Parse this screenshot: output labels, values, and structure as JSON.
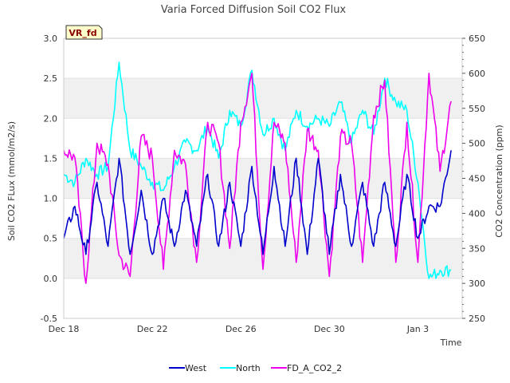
{
  "chart_data": {
    "type": "line",
    "title": "Varia Forced Diffusion Soil CO2 Flux",
    "badge": "VR_fd",
    "xlabel": "Time",
    "ylabel_left": "Soil CO2 FLux (mmol/m2/s)",
    "ylabel_right": "CO2 Concentration (ppm)",
    "xlim": [
      "2023-12-18",
      "2024-01-05"
    ],
    "ylim_left": [
      -0.5,
      3.0
    ],
    "ylim_right": [
      250,
      650
    ],
    "x_ticks": [
      "Dec 18",
      "Dec 22",
      "Dec 26",
      "Dec 30",
      "Jan 3"
    ],
    "y_ticks_left": [
      "-0.5",
      "0.0",
      "0.5",
      "1.0",
      "1.5",
      "2.0",
      "2.5",
      "3.0"
    ],
    "y_ticks_right": [
      "250",
      "300",
      "350",
      "400",
      "450",
      "500",
      "550",
      "600",
      "650"
    ],
    "shaded_bands_left": [
      [
        0.0,
        0.5
      ],
      [
        1.0,
        1.5
      ],
      [
        2.0,
        2.5
      ]
    ],
    "legend_position": "bottom-center",
    "series": [
      {
        "name": "West",
        "axis": "left",
        "color": "#0000cc",
        "x": [
          "2023-12-18",
          "2023-12-18 12:00",
          "2023-12-19",
          "2023-12-19 12:00",
          "2023-12-20",
          "2023-12-20 12:00",
          "2023-12-21",
          "2023-12-21 12:00",
          "2023-12-22",
          "2023-12-22 12:00",
          "2023-12-23",
          "2023-12-23 12:00",
          "2023-12-24",
          "2023-12-24 12:00",
          "2023-12-25",
          "2023-12-25 12:00",
          "2023-12-26",
          "2023-12-26 12:00",
          "2023-12-27",
          "2023-12-27 12:00",
          "2023-12-28",
          "2023-12-28 12:00",
          "2023-12-29",
          "2023-12-29 12:00",
          "2023-12-30",
          "2023-12-30 12:00",
          "2023-12-31",
          "2023-12-31 12:00",
          "2024-01-01",
          "2024-01-01 12:00",
          "2024-01-02",
          "2024-01-02 12:00",
          "2024-01-03",
          "2024-01-03 12:00",
          "2024-01-04",
          "2024-01-04 12:00"
        ],
        "y": [
          0.5,
          0.9,
          0.3,
          1.2,
          0.4,
          1.5,
          0.3,
          1.1,
          0.3,
          1.0,
          0.4,
          1.1,
          0.4,
          1.3,
          0.4,
          1.2,
          0.4,
          1.4,
          0.3,
          1.4,
          0.4,
          1.5,
          0.3,
          1.5,
          0.3,
          1.3,
          0.4,
          1.2,
          0.4,
          1.2,
          0.4,
          1.3,
          0.5,
          0.9,
          0.9,
          1.6
        ]
      },
      {
        "name": "North",
        "axis": "left",
        "color": "#00ffff",
        "x": [
          "2023-12-18",
          "2023-12-18 12:00",
          "2023-12-19",
          "2023-12-19 12:00",
          "2023-12-20",
          "2023-12-20 12:00",
          "2023-12-21",
          "2023-12-21 12:00",
          "2023-12-22",
          "2023-12-22 12:00",
          "2023-12-23",
          "2023-12-23 12:00",
          "2023-12-24",
          "2023-12-24 12:00",
          "2023-12-25",
          "2023-12-25 12:00",
          "2023-12-26",
          "2023-12-26 12:00",
          "2023-12-27",
          "2023-12-27 12:00",
          "2023-12-28",
          "2023-12-28 12:00",
          "2023-12-29",
          "2023-12-29 12:00",
          "2023-12-30",
          "2023-12-30 12:00",
          "2023-12-31",
          "2023-12-31 12:00",
          "2024-01-01",
          "2024-01-01 12:00",
          "2024-01-02",
          "2024-01-02 12:00",
          "2024-01-03",
          "2024-01-03 12:00",
          "2024-01-04",
          "2024-01-04 12:00"
        ],
        "y": [
          1.3,
          1.2,
          1.5,
          1.3,
          1.4,
          2.7,
          1.6,
          1.4,
          1.2,
          1.1,
          1.4,
          1.7,
          1.6,
          1.9,
          1.5,
          2.1,
          1.9,
          2.6,
          1.8,
          2.0,
          1.6,
          2.1,
          1.9,
          2.0,
          1.9,
          2.2,
          1.7,
          2.1,
          1.8,
          2.5,
          2.2,
          2.1,
          1.2,
          0.0,
          0.1,
          0.1
        ]
      },
      {
        "name": "FD_A_CO2_2",
        "axis": "right",
        "color": "#ee00ee",
        "x": [
          "2023-12-18",
          "2023-12-18 12:00",
          "2023-12-19",
          "2023-12-19 12:00",
          "2023-12-20",
          "2023-12-20 12:00",
          "2023-12-21",
          "2023-12-21 12:00",
          "2023-12-22",
          "2023-12-22 12:00",
          "2023-12-23",
          "2023-12-23 12:00",
          "2023-12-24",
          "2023-12-24 12:00",
          "2023-12-25",
          "2023-12-25 12:00",
          "2023-12-26",
          "2023-12-26 12:00",
          "2023-12-27",
          "2023-12-27 12:00",
          "2023-12-28",
          "2023-12-28 12:00",
          "2023-12-29",
          "2023-12-29 12:00",
          "2023-12-30",
          "2023-12-30 12:00",
          "2023-12-31",
          "2023-12-31 12:00",
          "2024-01-01",
          "2024-01-01 12:00",
          "2024-01-02",
          "2024-01-02 12:00",
          "2024-01-03",
          "2024-01-03 12:00",
          "2024-01-04",
          "2024-01-04 12:00"
        ],
        "y": [
          490,
          480,
          300,
          500,
          470,
          340,
          310,
          510,
          480,
          320,
          490,
          470,
          330,
          530,
          500,
          350,
          530,
          600,
          320,
          530,
          500,
          330,
          520,
          490,
          310,
          510,
          500,
          330,
          540,
          590,
          330,
          530,
          330,
          600,
          460,
          560
        ]
      }
    ]
  }
}
